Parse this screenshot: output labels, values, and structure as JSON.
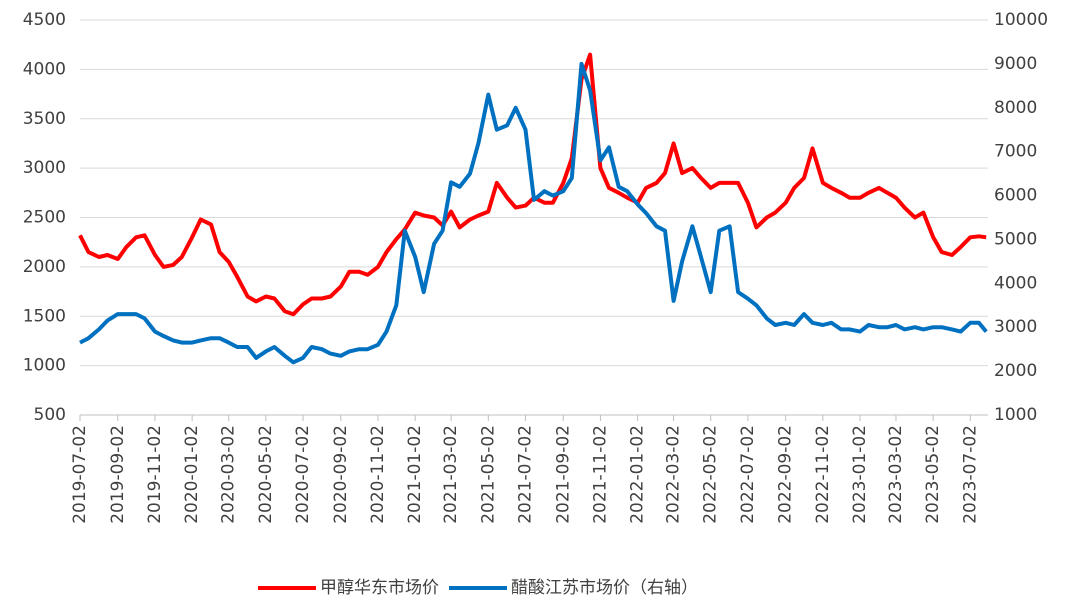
{
  "chart_data": {
    "type": "line",
    "x": [
      "2019-07-02",
      "2019-07-16",
      "2019-08-02",
      "2019-08-16",
      "2019-09-02",
      "2019-09-16",
      "2019-10-02",
      "2019-10-16",
      "2019-11-02",
      "2019-11-16",
      "2019-12-02",
      "2019-12-16",
      "2020-01-02",
      "2020-01-16",
      "2020-02-02",
      "2020-02-16",
      "2020-03-02",
      "2020-03-16",
      "2020-04-02",
      "2020-04-16",
      "2020-05-02",
      "2020-05-16",
      "2020-06-02",
      "2020-06-16",
      "2020-07-02",
      "2020-07-16",
      "2020-08-02",
      "2020-08-16",
      "2020-09-02",
      "2020-09-16",
      "2020-10-02",
      "2020-10-16",
      "2020-11-02",
      "2020-11-16",
      "2020-12-02",
      "2020-12-16",
      "2021-01-02",
      "2021-01-16",
      "2021-02-02",
      "2021-02-16",
      "2021-03-02",
      "2021-03-16",
      "2021-04-02",
      "2021-04-16",
      "2021-05-02",
      "2021-05-16",
      "2021-06-02",
      "2021-06-16",
      "2021-07-02",
      "2021-07-16",
      "2021-08-02",
      "2021-08-16",
      "2021-09-02",
      "2021-09-16",
      "2021-10-02",
      "2021-10-16",
      "2021-11-02",
      "2021-11-16",
      "2021-12-02",
      "2021-12-16",
      "2022-01-02",
      "2022-01-16",
      "2022-02-02",
      "2022-02-16",
      "2022-03-02",
      "2022-03-16",
      "2022-04-02",
      "2022-04-16",
      "2022-05-02",
      "2022-05-16",
      "2022-06-02",
      "2022-06-16",
      "2022-07-02",
      "2022-07-16",
      "2022-08-02",
      "2022-08-16",
      "2022-09-02",
      "2022-09-16",
      "2022-10-02",
      "2022-10-16",
      "2022-11-02",
      "2022-11-16",
      "2022-12-02",
      "2022-12-16",
      "2023-01-02",
      "2023-01-16",
      "2023-02-02",
      "2023-02-16",
      "2023-03-02",
      "2023-03-16",
      "2023-04-02",
      "2023-04-16",
      "2023-05-02",
      "2023-05-16",
      "2023-06-02",
      "2023-06-16",
      "2023-07-02",
      "2023-07-16",
      "2023-07-28"
    ],
    "series": [
      {
        "name": "甲醇华东市场价",
        "color": "#ff0000",
        "values": [
          2320,
          2150,
          2100,
          2120,
          2080,
          2200,
          2300,
          2320,
          2120,
          2000,
          2020,
          2100,
          2300,
          2480,
          2430,
          2150,
          2050,
          1900,
          1700,
          1650,
          1700,
          1680,
          1550,
          1520,
          1620,
          1680,
          1680,
          1700,
          1800,
          1950,
          1950,
          1920,
          2000,
          2150,
          2280,
          2380,
          2550,
          2520,
          2500,
          2420,
          2560,
          2400,
          2480,
          2520,
          2560,
          2850,
          2700,
          2600,
          2620,
          2700,
          2650,
          2650,
          2850,
          3100,
          3900,
          4150,
          3000,
          2800,
          2750,
          2700,
          2650,
          2800,
          2850,
          2950,
          3250,
          2950,
          3000,
          2900,
          2800,
          2850,
          2850,
          2850,
          2650,
          2400,
          2500,
          2550,
          2650,
          2800,
          2900,
          3200,
          2850,
          2800,
          2750,
          2700,
          2700,
          2750,
          2800,
          2750,
          2700,
          2600,
          2500,
          2550,
          2300,
          2150,
          2120,
          2200,
          2300,
          2310,
          2300
        ]
      },
      {
        "name": "醋酸江苏市场价（右轴）",
        "color": "#0070c0",
        "axis": "y2",
        "values": [
          2650,
          2750,
          2950,
          3150,
          3300,
          3300,
          3300,
          3200,
          2900,
          2800,
          2700,
          2650,
          2650,
          2700,
          2750,
          2750,
          2650,
          2550,
          2550,
          2300,
          2450,
          2550,
          2350,
          2200,
          2300,
          2550,
          2500,
          2400,
          2350,
          2450,
          2500,
          2500,
          2600,
          2900,
          3500,
          5200,
          4600,
          3800,
          4900,
          5200,
          6300,
          6200,
          6500,
          7200,
          8300,
          7500,
          7600,
          8000,
          7500,
          5900,
          6100,
          6000,
          6100,
          6400,
          9000,
          8400,
          6800,
          7100,
          6200,
          6100,
          5800,
          5600,
          5300,
          5200,
          3600,
          4500,
          5300,
          4600,
          3800,
          5200,
          5300,
          3800,
          3650,
          3500,
          3200,
          3050,
          3100,
          3050,
          3300,
          3100,
          3050,
          3100,
          2950,
          2950,
          2900,
          3050,
          3000,
          3000,
          3050,
          2950,
          3000,
          2950,
          3000,
          3000,
          2950,
          2900,
          3100,
          3100,
          2900
        ]
      }
    ],
    "xlim": [
      "2019-07-02",
      "2023-07-31"
    ],
    "xticks": [
      "2019-07-02",
      "2019-09-02",
      "2019-11-02",
      "2020-01-02",
      "2020-03-02",
      "2020-05-02",
      "2020-07-02",
      "2020-09-02",
      "2020-11-02",
      "2021-01-02",
      "2021-03-02",
      "2021-05-02",
      "2021-07-02",
      "2021-09-02",
      "2021-11-02",
      "2022-01-02",
      "2022-03-02",
      "2022-05-02",
      "2022-07-02",
      "2022-09-02",
      "2022-11-02",
      "2023-01-02",
      "2023-03-02",
      "2023-05-02",
      "2023-07-02"
    ],
    "ylim": [
      500,
      4500
    ],
    "yticks": [
      500,
      1000,
      1500,
      2000,
      2500,
      3000,
      3500,
      4000,
      4500
    ],
    "y2lim": [
      1000,
      10000
    ],
    "y2ticks": [
      1000,
      2000,
      3000,
      4000,
      5000,
      6000,
      7000,
      8000,
      9000,
      10000
    ],
    "grid": true,
    "legend": "bottom"
  }
}
